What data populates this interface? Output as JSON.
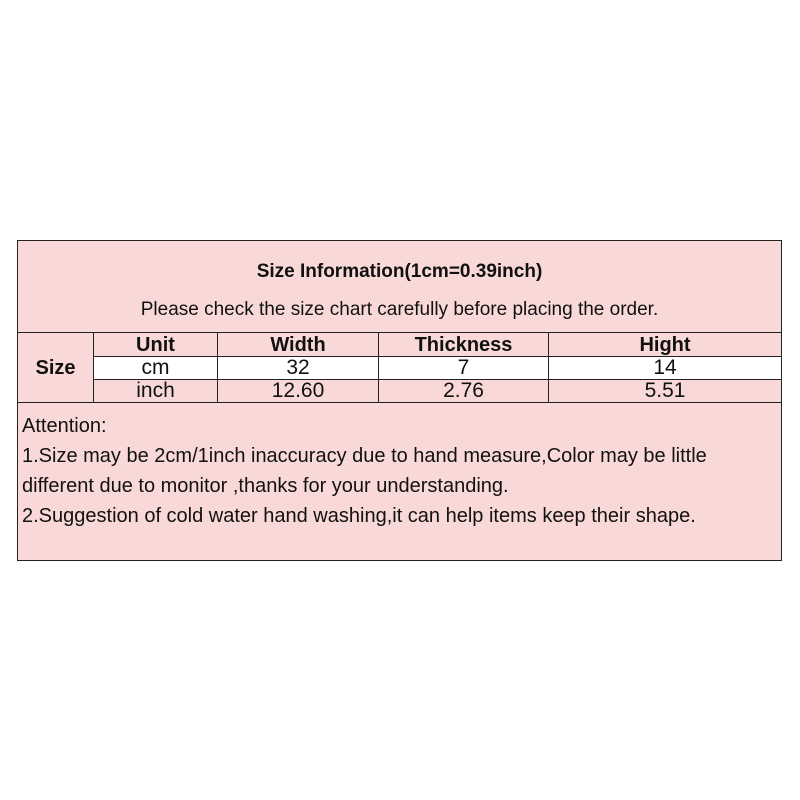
{
  "title": "Size Information(1cm=0.39inch)",
  "subtitle": "Please check the size chart carefully before placing the order.",
  "table": {
    "row_label": "Size",
    "headers": [
      "Unit",
      "Width",
      "Thickness",
      "Hight"
    ],
    "rows": [
      [
        "cm",
        "32",
        "7",
        "14"
      ],
      [
        "inch",
        "12.60",
        "2.76",
        "5.51"
      ]
    ]
  },
  "attention": {
    "heading": "Attention:",
    "notes": [
      "1.Size may be 2cm/1inch inaccuracy due to hand measure,Color may be little different due to monitor ,thanks for your understanding.",
      "2.Suggestion of cold water hand washing,it can help items keep their shape."
    ]
  },
  "colors": {
    "background": "#f9d9d7",
    "highlight_row": "#ffffff"
  }
}
